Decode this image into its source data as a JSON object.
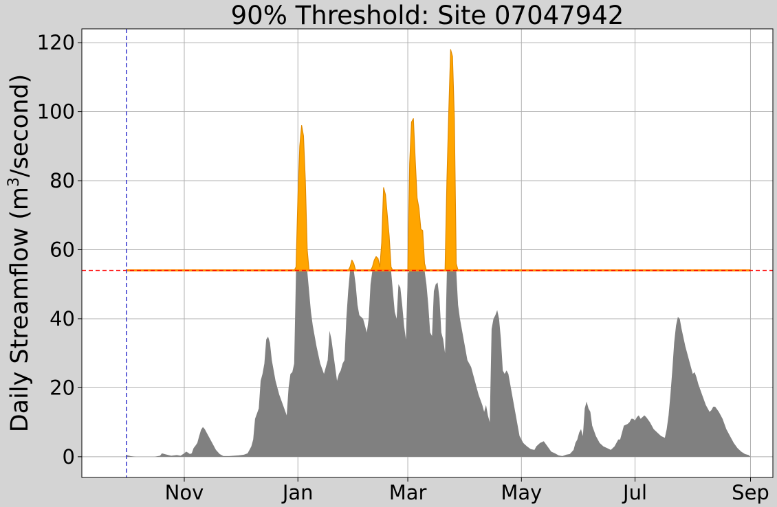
{
  "chart_data": {
    "type": "area",
    "title": "90% Threshold: Site 07047942",
    "xlabel": "",
    "ylabel_main": "Daily Streamflow (m",
    "ylabel_sup": "3",
    "ylabel_tail": "/second)",
    "ylim": [
      -6,
      124
    ],
    "yticks": [
      0,
      20,
      40,
      60,
      80,
      100,
      120
    ],
    "xlim": [
      -24,
      347
    ],
    "xticks": [
      {
        "label": "Nov",
        "day": 31
      },
      {
        "label": "Jan",
        "day": 92
      },
      {
        "label": "Mar",
        "day": 151
      },
      {
        "label": "May",
        "day": 212
      },
      {
        "label": "Jul",
        "day": 273
      },
      {
        "label": "Sep",
        "day": 335
      }
    ],
    "x_unit": "days since Oct 1",
    "grid": true,
    "threshold": 54,
    "period_start_day": 0,
    "period_end_day": 364,
    "colors": {
      "background": "#d4d4d4",
      "plot_background": "#ffffff",
      "flow_fill": "#808080",
      "exceedance_fill": "#ffa500",
      "exceedance_edge": "#e08a00",
      "threshold_line": "#ff0000",
      "threshold_band": "#ff8c00",
      "period_lines": "#3333cc",
      "grid": "#b0b0b0"
    },
    "series": [
      {
        "name": "Daily Streamflow",
        "points": [
          [
            0,
            0.5
          ],
          [
            2,
            0.2
          ],
          [
            5,
            0
          ],
          [
            10,
            0
          ],
          [
            15,
            0
          ],
          [
            18,
            0.3
          ],
          [
            19,
            1
          ],
          [
            21,
            0.7
          ],
          [
            24,
            0.3
          ],
          [
            27,
            0.5
          ],
          [
            29,
            0.3
          ],
          [
            31,
            1
          ],
          [
            32,
            1.5
          ],
          [
            33,
            1.2
          ],
          [
            34,
            0.8
          ],
          [
            35,
            1
          ],
          [
            36,
            2.5
          ],
          [
            37,
            3.2
          ],
          [
            38,
            4
          ],
          [
            39,
            6
          ],
          [
            40,
            7.8
          ],
          [
            41,
            8.6
          ],
          [
            42,
            8
          ],
          [
            44,
            6
          ],
          [
            46,
            4
          ],
          [
            48,
            2
          ],
          [
            50,
            0.8
          ],
          [
            52,
            0.2
          ],
          [
            55,
            0.2
          ],
          [
            60,
            0.4
          ],
          [
            63,
            0.6
          ],
          [
            65,
            1
          ],
          [
            66,
            2
          ],
          [
            67,
            3
          ],
          [
            68,
            5
          ],
          [
            69,
            11
          ],
          [
            70,
            12.5
          ],
          [
            71,
            14
          ],
          [
            72,
            22
          ],
          [
            73,
            24
          ],
          [
            74,
            27
          ],
          [
            75,
            34
          ],
          [
            76,
            34.8
          ],
          [
            77,
            33
          ],
          [
            78,
            28
          ],
          [
            80,
            22
          ],
          [
            82,
            18
          ],
          [
            84,
            15
          ],
          [
            86,
            12
          ],
          [
            87,
            20
          ],
          [
            88,
            24
          ],
          [
            89,
            24.5
          ],
          [
            90,
            27
          ],
          [
            91,
            55
          ],
          [
            92,
            75
          ],
          [
            93,
            90
          ],
          [
            94,
            96
          ],
          [
            95,
            93
          ],
          [
            96,
            80
          ],
          [
            97,
            60
          ],
          [
            98,
            48
          ],
          [
            99,
            42
          ],
          [
            100,
            38
          ],
          [
            102,
            32
          ],
          [
            104,
            27
          ],
          [
            106,
            24
          ],
          [
            108,
            28
          ],
          [
            109,
            36.5
          ],
          [
            110,
            34
          ],
          [
            112,
            26
          ],
          [
            113,
            22
          ],
          [
            114,
            24
          ],
          [
            115,
            25
          ],
          [
            116,
            27
          ],
          [
            117,
            28
          ],
          [
            118,
            40
          ],
          [
            119,
            48
          ],
          [
            120,
            55
          ],
          [
            121,
            57
          ],
          [
            122,
            56
          ],
          [
            123,
            50
          ],
          [
            124,
            44
          ],
          [
            125,
            41
          ],
          [
            127,
            40
          ],
          [
            129,
            36
          ],
          [
            130,
            40
          ],
          [
            131,
            50
          ],
          [
            132,
            55
          ],
          [
            133,
            57
          ],
          [
            134,
            58
          ],
          [
            135,
            57.5
          ],
          [
            136,
            55
          ],
          [
            137,
            62
          ],
          [
            138,
            78
          ],
          [
            139,
            76
          ],
          [
            140,
            70
          ],
          [
            141,
            64
          ],
          [
            142,
            55
          ],
          [
            143,
            48
          ],
          [
            144,
            42
          ],
          [
            145,
            40
          ],
          [
            146,
            50
          ],
          [
            147,
            49
          ],
          [
            148,
            44
          ],
          [
            149,
            38
          ],
          [
            150,
            34
          ],
          [
            151,
            53
          ],
          [
            152,
            85
          ],
          [
            153,
            97
          ],
          [
            154,
            98
          ],
          [
            155,
            86
          ],
          [
            156,
            75
          ],
          [
            157,
            72
          ],
          [
            158,
            66
          ],
          [
            159,
            65.5
          ],
          [
            160,
            56
          ],
          [
            161,
            50
          ],
          [
            162,
            44
          ],
          [
            163,
            36
          ],
          [
            164,
            35
          ],
          [
            165,
            48
          ],
          [
            166,
            50
          ],
          [
            167,
            50.5
          ],
          [
            168,
            46
          ],
          [
            169,
            36
          ],
          [
            170,
            34
          ],
          [
            171,
            30
          ],
          [
            172,
            80
          ],
          [
            173,
            100
          ],
          [
            174,
            118
          ],
          [
            175,
            116
          ],
          [
            176,
            98
          ],
          [
            177,
            56
          ],
          [
            178,
            44
          ],
          [
            179,
            40
          ],
          [
            181,
            34
          ],
          [
            183,
            28
          ],
          [
            185,
            26
          ],
          [
            187,
            22
          ],
          [
            189,
            18
          ],
          [
            191,
            15
          ],
          [
            192,
            13
          ],
          [
            193,
            15
          ],
          [
            194,
            12
          ],
          [
            195,
            10
          ],
          [
            196,
            37
          ],
          [
            197,
            40
          ],
          [
            198,
            41
          ],
          [
            199,
            42.5
          ],
          [
            200,
            40
          ],
          [
            201,
            34
          ],
          [
            202,
            25
          ],
          [
            203,
            24
          ],
          [
            204,
            25
          ],
          [
            205,
            24
          ],
          [
            207,
            18
          ],
          [
            209,
            12
          ],
          [
            211,
            6
          ],
          [
            213,
            4
          ],
          [
            215,
            3
          ],
          [
            217,
            2.2
          ],
          [
            219,
            2
          ],
          [
            220,
            3
          ],
          [
            222,
            4
          ],
          [
            224,
            4.5
          ],
          [
            226,
            3
          ],
          [
            228,
            1.5
          ],
          [
            230,
            1
          ],
          [
            232,
            0.4
          ],
          [
            234,
            0.2
          ],
          [
            236,
            0.6
          ],
          [
            238,
            0.8
          ],
          [
            240,
            2
          ],
          [
            241,
            4
          ],
          [
            242,
            5
          ],
          [
            243,
            7
          ],
          [
            244,
            8
          ],
          [
            245,
            6
          ],
          [
            246,
            14
          ],
          [
            247,
            16
          ],
          [
            248,
            14
          ],
          [
            249,
            13
          ],
          [
            250,
            9
          ],
          [
            252,
            6
          ],
          [
            254,
            4
          ],
          [
            256,
            3
          ],
          [
            258,
            2.5
          ],
          [
            260,
            2
          ],
          [
            262,
            3
          ],
          [
            264,
            5
          ],
          [
            265,
            5
          ],
          [
            266,
            7
          ],
          [
            267,
            9
          ],
          [
            269,
            9.5
          ],
          [
            270,
            10
          ],
          [
            271,
            11
          ],
          [
            272,
            11
          ],
          [
            273,
            10.5
          ],
          [
            274,
            11.5
          ],
          [
            275,
            12
          ],
          [
            276,
            11
          ],
          [
            277,
            11.5
          ],
          [
            278,
            12
          ],
          [
            279,
            11.5
          ],
          [
            281,
            10
          ],
          [
            283,
            8
          ],
          [
            285,
            7
          ],
          [
            287,
            6
          ],
          [
            289,
            5.5
          ],
          [
            290,
            8
          ],
          [
            291,
            12
          ],
          [
            292,
            18
          ],
          [
            293,
            25
          ],
          [
            294,
            33
          ],
          [
            295,
            38
          ],
          [
            296,
            40.5
          ],
          [
            297,
            40
          ],
          [
            298,
            37
          ],
          [
            300,
            32
          ],
          [
            302,
            28
          ],
          [
            303,
            26
          ],
          [
            304,
            24
          ],
          [
            305,
            24.5
          ],
          [
            306,
            23
          ],
          [
            307,
            21
          ],
          [
            309,
            18
          ],
          [
            311,
            15
          ],
          [
            313,
            13
          ],
          [
            314,
            13.5
          ],
          [
            315,
            14.5
          ],
          [
            316,
            14.5
          ],
          [
            318,
            13
          ],
          [
            320,
            11
          ],
          [
            322,
            8
          ],
          [
            324,
            6
          ],
          [
            326,
            4
          ],
          [
            328,
            2.5
          ],
          [
            330,
            1.5
          ],
          [
            332,
            0.8
          ],
          [
            334,
            0.5
          ],
          [
            335,
            0
          ]
        ]
      }
    ]
  }
}
